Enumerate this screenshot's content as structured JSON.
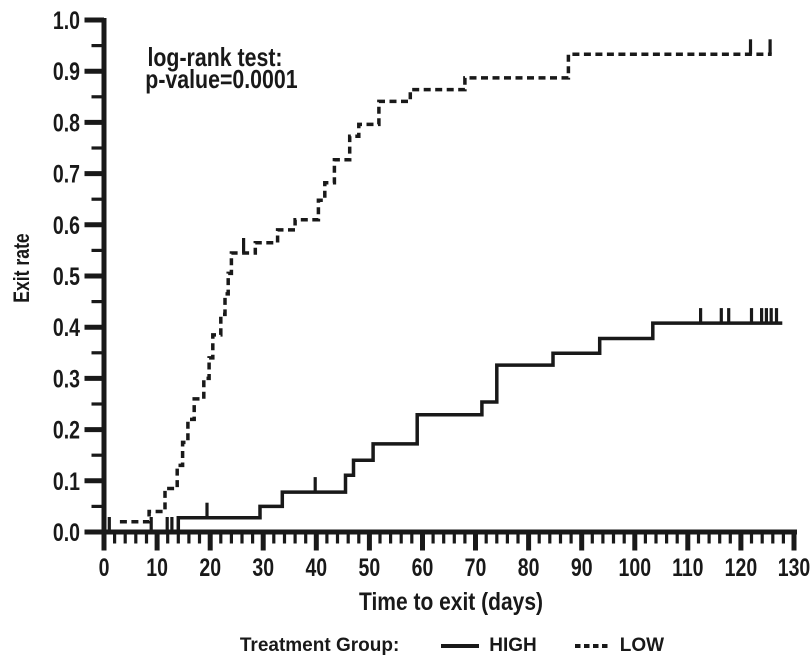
{
  "figure": {
    "background": "#ffffff",
    "ink_color": "#191919"
  },
  "chart_data": {
    "type": "line",
    "subtype": "kaplan-meier-step",
    "title": "",
    "xlabel": "Time to exit (days)",
    "ylabel": "Exit rate",
    "xlim": [
      0,
      130
    ],
    "ylim": [
      0.0,
      1.0
    ],
    "grid": false,
    "x_tick_step": 10,
    "x_minor_tick_step": 2,
    "y_tick_step": 0.1,
    "y_minor_tick_step": 0.05,
    "x_tick_labels": [
      "0",
      "10",
      "20",
      "30",
      "40",
      "50",
      "60",
      "70",
      "80",
      "90",
      "100",
      "110",
      "120",
      "130"
    ],
    "y_tick_labels": [
      "0.0",
      "0.1",
      "0.2",
      "0.3",
      "0.4",
      "0.5",
      "0.6",
      "0.7",
      "0.8",
      "0.9",
      "1.0"
    ],
    "annotation": {
      "lines": [
        "log-rank test:",
        "p-value=0.0001"
      ]
    },
    "legend": {
      "title": "Treatment Group:",
      "position": "bottom-center",
      "entries": [
        {
          "label": "HIGH",
          "line": "solid"
        },
        {
          "label": "LOW",
          "line": "dashed"
        }
      ]
    },
    "series": [
      {
        "name": "HIGH",
        "line": "solid",
        "color": "#191919",
        "steps": [
          [
            0,
            0.0
          ],
          [
            14,
            0.028
          ],
          [
            29.4,
            0.05
          ],
          [
            33.6,
            0.078
          ],
          [
            45.5,
            0.111
          ],
          [
            47,
            0.14
          ],
          [
            50.7,
            0.172
          ],
          [
            59,
            0.229
          ],
          [
            71.2,
            0.254
          ],
          [
            74,
            0.326
          ],
          [
            84.6,
            0.349
          ],
          [
            93.4,
            0.378
          ],
          [
            103.4,
            0.408
          ]
        ],
        "end_time": 127.8,
        "censor_times": [
          1,
          8.9,
          11.9,
          12.8,
          19.4,
          39.8,
          112.4,
          116.3,
          117.7,
          122,
          123.9,
          124.8,
          125.7,
          126.7
        ]
      },
      {
        "name": "LOW",
        "line": "dashed",
        "color": "#191919",
        "steps": [
          [
            3,
            0.02
          ],
          [
            8.5,
            0.04
          ],
          [
            11.5,
            0.085
          ],
          [
            13.8,
            0.13
          ],
          [
            14.8,
            0.175
          ],
          [
            15.8,
            0.22
          ],
          [
            17,
            0.26
          ],
          [
            18.8,
            0.3
          ],
          [
            19.8,
            0.34
          ],
          [
            20.5,
            0.385
          ],
          [
            22,
            0.425
          ],
          [
            22.8,
            0.465
          ],
          [
            23.4,
            0.505
          ],
          [
            24,
            0.545
          ],
          [
            28.5,
            0.565
          ],
          [
            32.7,
            0.59
          ],
          [
            36,
            0.61
          ],
          [
            40.4,
            0.648
          ],
          [
            41.6,
            0.682
          ],
          [
            43.4,
            0.727
          ],
          [
            46.3,
            0.773
          ],
          [
            48,
            0.796
          ],
          [
            51.8,
            0.841
          ],
          [
            57.7,
            0.864
          ],
          [
            68,
            0.887
          ],
          [
            87.5,
            0.933
          ]
        ],
        "end_time": 125.8,
        "censor_times": [
          26.3,
          121.8,
          125.5
        ]
      }
    ]
  }
}
